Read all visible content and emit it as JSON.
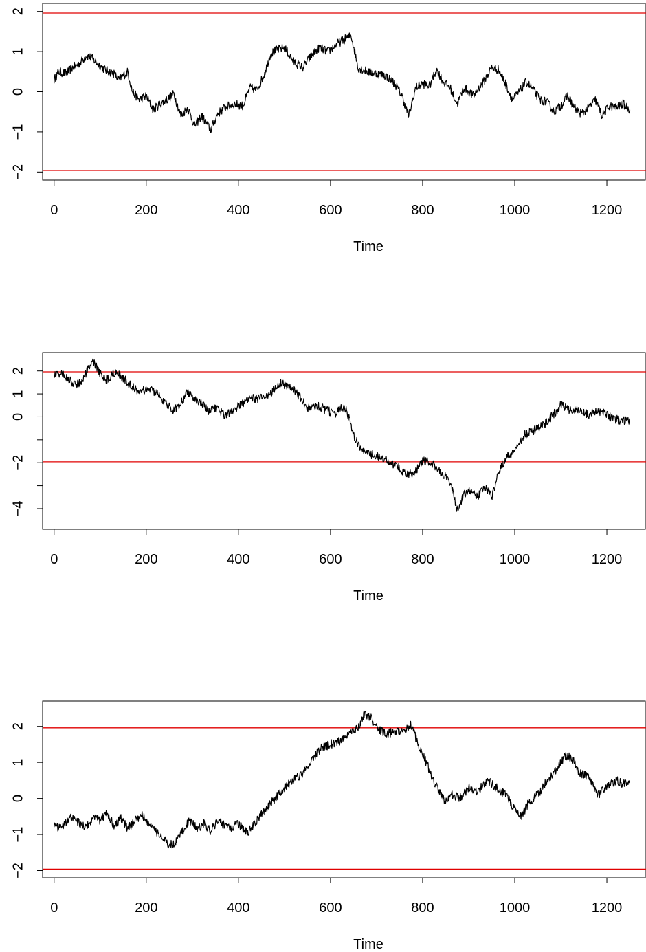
{
  "colors": {
    "series": "#000000",
    "ref_line": "#e00000",
    "frame": "#000000",
    "background": "#ffffff"
  },
  "chart_data": [
    {
      "type": "line",
      "title": "",
      "xlabel": "Time",
      "ylabel": "",
      "xlim": [
        -25,
        1285
      ],
      "ylim": [
        -2.2,
        2.2
      ],
      "x_ticks": [
        0,
        200,
        400,
        600,
        800,
        1000,
        1200
      ],
      "y_ticks": [
        -2,
        -1,
        0,
        1,
        2
      ],
      "y_tick_labels": [
        "-2",
        "-1",
        "0",
        "1",
        "2"
      ],
      "hlines": [
        1.96,
        -1.96
      ],
      "grid": false,
      "series": [
        {
          "x": [
            0,
            10,
            25,
            40,
            55,
            70,
            80,
            90,
            110,
            130,
            140,
            160,
            170,
            185,
            200,
            215,
            230,
            245,
            260,
            275,
            290,
            305,
            320,
            340,
            355,
            370,
            390,
            410,
            425,
            440,
            455,
            470,
            485,
            500,
            520,
            540,
            555,
            575,
            595,
            615,
            630,
            645,
            660,
            680,
            700,
            720,
            740,
            755,
            770,
            785,
            800,
            815,
            830,
            845,
            860,
            875,
            890,
            910,
            930,
            950,
            965,
            980,
            995,
            1010,
            1025,
            1040,
            1055,
            1070,
            1085,
            1100,
            1115,
            1130,
            1145,
            1160,
            1175,
            1190,
            1205,
            1220,
            1235,
            1250
          ],
          "y": [
            0.3,
            0.5,
            0.45,
            0.6,
            0.7,
            0.9,
            0.85,
            0.75,
            0.55,
            0.45,
            0.3,
            0.5,
            0.0,
            -0.2,
            -0.1,
            -0.45,
            -0.3,
            -0.2,
            -0.05,
            -0.6,
            -0.4,
            -0.85,
            -0.6,
            -0.95,
            -0.55,
            -0.4,
            -0.3,
            -0.35,
            0.1,
            0.05,
            0.4,
            0.95,
            1.05,
            1.1,
            0.75,
            0.6,
            0.85,
            1.1,
            1.0,
            1.2,
            1.3,
            1.4,
            0.6,
            0.5,
            0.45,
            0.4,
            0.2,
            -0.1,
            -0.6,
            0.1,
            0.2,
            0.15,
            0.55,
            0.25,
            0.1,
            -0.3,
            0.1,
            -0.1,
            0.2,
            0.6,
            0.55,
            0.2,
            -0.2,
            0.0,
            0.25,
            0.05,
            -0.2,
            -0.25,
            -0.5,
            -0.35,
            -0.1,
            -0.4,
            -0.55,
            -0.4,
            -0.2,
            -0.6,
            -0.35,
            -0.4,
            -0.3,
            -0.45
          ]
        }
      ]
    },
    {
      "type": "line",
      "title": "",
      "xlabel": "Time",
      "ylabel": "",
      "xlim": [
        -25,
        1285
      ],
      "ylim": [
        -4.9,
        2.8
      ],
      "x_ticks": [
        0,
        200,
        400,
        600,
        800,
        1000,
        1200
      ],
      "y_ticks": [
        -4,
        -3,
        -2,
        -1,
        0,
        1,
        2
      ],
      "y_tick_labels": [
        "-4",
        "",
        "-2",
        "",
        "0",
        "1",
        "2"
      ],
      "hlines": [
        1.96,
        -1.96
      ],
      "grid": false,
      "series": [
        {
          "x": [
            0,
            15,
            30,
            45,
            60,
            75,
            85,
            100,
            115,
            130,
            150,
            170,
            185,
            200,
            215,
            230,
            245,
            260,
            275,
            290,
            305,
            320,
            335,
            350,
            370,
            390,
            410,
            430,
            450,
            470,
            490,
            505,
            520,
            535,
            550,
            570,
            590,
            610,
            625,
            635,
            650,
            665,
            680,
            700,
            720,
            740,
            760,
            780,
            800,
            815,
            830,
            850,
            865,
            875,
            890,
            905,
            920,
            935,
            950,
            965,
            980,
            1000,
            1020,
            1040,
            1060,
            1080,
            1100,
            1120,
            1140,
            1160,
            1180,
            1200,
            1215,
            1230,
            1250
          ],
          "y": [
            1.85,
            1.9,
            1.65,
            1.4,
            1.55,
            2.1,
            2.4,
            1.9,
            1.6,
            1.95,
            1.7,
            1.3,
            1.1,
            1.2,
            1.15,
            0.9,
            0.5,
            0.3,
            0.6,
            1.1,
            0.8,
            0.6,
            0.2,
            0.4,
            0.1,
            0.3,
            0.6,
            0.8,
            0.8,
            1.0,
            1.5,
            1.35,
            1.2,
            0.8,
            0.4,
            0.5,
            0.3,
            0.15,
            0.4,
            0.3,
            -0.8,
            -1.4,
            -1.6,
            -1.7,
            -1.9,
            -2.1,
            -2.4,
            -2.5,
            -1.9,
            -2.0,
            -2.2,
            -2.6,
            -3.2,
            -4.1,
            -3.4,
            -3.2,
            -3.5,
            -3.0,
            -3.5,
            -2.4,
            -1.8,
            -1.5,
            -0.8,
            -0.6,
            -0.4,
            0.0,
            0.5,
            0.3,
            0.25,
            0.1,
            0.3,
            0.1,
            -0.1,
            -0.15,
            -0.2
          ]
        }
      ]
    },
    {
      "type": "line",
      "title": "",
      "xlabel": "Time",
      "ylabel": "",
      "xlim": [
        -25,
        1285
      ],
      "ylim": [
        -2.2,
        2.7
      ],
      "x_ticks": [
        0,
        200,
        400,
        600,
        800,
        1000,
        1200
      ],
      "y_ticks": [
        -2,
        -1,
        0,
        1,
        2
      ],
      "y_tick_labels": [
        "-2",
        "-1",
        "0",
        "1",
        "2"
      ],
      "hlines": [
        1.96,
        -1.96
      ],
      "grid": false,
      "series": [
        {
          "x": [
            0,
            10,
            25,
            40,
            55,
            70,
            85,
            100,
            115,
            130,
            145,
            160,
            175,
            190,
            205,
            220,
            235,
            250,
            265,
            280,
            295,
            310,
            325,
            340,
            355,
            370,
            385,
            400,
            420,
            440,
            460,
            480,
            500,
            520,
            540,
            560,
            580,
            600,
            620,
            640,
            660,
            675,
            690,
            705,
            720,
            740,
            760,
            775,
            790,
            805,
            820,
            835,
            850,
            865,
            880,
            900,
            920,
            940,
            960,
            980,
            1000,
            1015,
            1030,
            1050,
            1070,
            1090,
            1110,
            1125,
            1140,
            1160,
            1180,
            1200,
            1220,
            1235,
            1250
          ],
          "y": [
            -0.7,
            -0.85,
            -0.65,
            -0.5,
            -0.7,
            -0.8,
            -0.5,
            -0.6,
            -0.4,
            -0.75,
            -0.55,
            -0.85,
            -0.6,
            -0.45,
            -0.7,
            -0.9,
            -1.1,
            -1.3,
            -1.2,
            -0.9,
            -0.6,
            -0.85,
            -0.7,
            -0.9,
            -0.6,
            -0.75,
            -0.8,
            -0.7,
            -0.95,
            -0.6,
            -0.3,
            0.0,
            0.3,
            0.5,
            0.7,
            1.1,
            1.4,
            1.5,
            1.6,
            1.8,
            2.0,
            2.35,
            2.2,
            1.9,
            1.8,
            1.85,
            1.9,
            2.05,
            1.5,
            1.1,
            0.6,
            0.2,
            -0.1,
            0.1,
            0.0,
            0.3,
            0.2,
            0.5,
            0.3,
            0.1,
            -0.3,
            -0.5,
            -0.1,
            0.1,
            0.5,
            0.8,
            1.2,
            1.1,
            0.7,
            0.6,
            0.1,
            0.3,
            0.5,
            0.4,
            0.5
          ]
        }
      ]
    }
  ]
}
